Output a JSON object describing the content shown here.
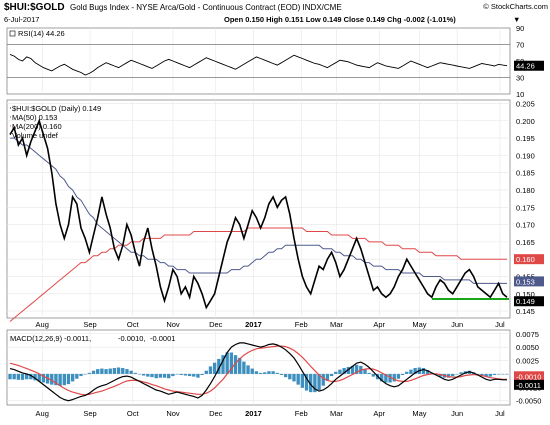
{
  "header": {
    "symbol": "$HUI:$GOLD",
    "name": "Gold Bugs Index - NYSE Arca/Gold - Continuous Contract (EOD) INDX/CME",
    "brand": "© StockCharts.com",
    "date": "6-Jul-2017",
    "quote": "Open 0.150 High 0.151 Low 0.149 Close 0.149 Chg -0.002 (-1.01%)",
    "down_arrow": "▼"
  },
  "colors": {
    "price": "#000000",
    "ma50": "#4f5a8c",
    "ma200": "#e04848",
    "rsi": "#000000",
    "macd": "#000000",
    "signal": "#e04848",
    "hist": "#3c8fbf",
    "support": "#1aa51a",
    "grid": "#e6e6e6",
    "badge_blue": "#4f5a8c",
    "badge_red": "#e04848",
    "badge_black": "#000000"
  },
  "months": [
    "Aug",
    "Sep",
    "Oct",
    "Nov",
    "Dec",
    "2017",
    "Feb",
    "Mar",
    "Apr",
    "May",
    "Jun",
    "Jul"
  ],
  "chart_data": [
    {
      "type": "line",
      "panel": "RSI",
      "legend": "RSI(14) 44.26",
      "ylim": [
        10,
        90
      ],
      "yticks": [
        "10",
        "30",
        "50",
        "70",
        "90"
      ],
      "badge": "44.26",
      "reference_lines": [
        30,
        70
      ],
      "series": [
        {
          "name": "RSI(14)",
          "values": [
            58,
            56,
            52,
            50,
            55,
            53,
            48,
            45,
            42,
            40,
            38,
            41,
            44,
            46,
            43,
            40,
            38,
            36,
            33,
            35,
            38,
            42,
            45,
            48,
            46,
            44,
            42,
            45,
            48,
            51,
            49,
            47,
            45,
            43,
            41,
            44,
            47,
            50,
            52,
            50,
            48,
            46,
            44,
            42,
            45,
            48,
            51,
            54,
            52,
            50,
            48,
            46,
            44,
            42,
            40,
            43,
            46,
            49,
            52,
            55,
            53,
            51,
            49,
            47,
            45,
            48,
            51,
            54,
            57,
            55,
            53,
            51,
            49,
            47,
            46,
            44,
            42,
            45,
            48,
            51,
            50,
            49,
            47,
            45,
            44,
            43,
            42,
            45,
            48,
            46,
            44,
            43,
            42,
            41,
            44,
            47,
            50,
            48,
            46,
            44,
            42,
            44,
            46,
            48,
            47,
            46,
            45,
            44,
            43,
            42,
            41,
            43,
            45,
            47,
            46,
            45,
            44,
            46,
            45,
            44.26
          ]
        }
      ]
    },
    {
      "type": "line",
      "panel": "Price",
      "legend_series": "$HUI:$GOLD (Daily) 0.149",
      "legend_ma50": "MA(50) 0.153",
      "legend_ma200": "MA(200) 0.160",
      "legend_volume": "Volume undef",
      "ylim": [
        0.143,
        0.206
      ],
      "yticks": [
        "0.145",
        "0.150",
        "0.155",
        "0.160",
        "0.165",
        "0.170",
        "0.175",
        "0.180",
        "0.185",
        "0.190",
        "0.195",
        "0.200",
        "0.205"
      ],
      "badges": {
        "ma200": "0.160",
        "ma50": "0.153",
        "close": "0.149"
      },
      "support_level": 0.1485,
      "series": [
        {
          "name": "$HUI:$GOLD",
          "values": [
            0.196,
            0.198,
            0.193,
            0.195,
            0.19,
            0.194,
            0.197,
            0.2,
            0.196,
            0.192,
            0.185,
            0.176,
            0.17,
            0.166,
            0.17,
            0.178,
            0.176,
            0.169,
            0.166,
            0.162,
            0.167,
            0.172,
            0.178,
            0.173,
            0.169,
            0.163,
            0.16,
            0.164,
            0.17,
            0.167,
            0.162,
            0.158,
            0.165,
            0.169,
            0.163,
            0.158,
            0.152,
            0.148,
            0.152,
            0.157,
            0.155,
            0.15,
            0.152,
            0.149,
            0.155,
            0.153,
            0.15,
            0.146,
            0.148,
            0.15,
            0.155,
            0.16,
            0.165,
            0.168,
            0.172,
            0.17,
            0.166,
            0.17,
            0.174,
            0.172,
            0.169,
            0.172,
            0.176,
            0.178,
            0.175,
            0.177,
            0.178,
            0.173,
            0.166,
            0.16,
            0.155,
            0.152,
            0.15,
            0.154,
            0.158,
            0.157,
            0.16,
            0.162,
            0.159,
            0.155,
            0.157,
            0.16,
            0.163,
            0.166,
            0.163,
            0.159,
            0.155,
            0.151,
            0.152,
            0.15,
            0.149,
            0.15,
            0.152,
            0.155,
            0.157,
            0.16,
            0.158,
            0.156,
            0.154,
            0.152,
            0.15,
            0.149,
            0.152,
            0.154,
            0.153,
            0.151,
            0.15,
            0.152,
            0.154,
            0.156,
            0.157,
            0.155,
            0.152,
            0.151,
            0.15,
            0.149,
            0.151,
            0.153,
            0.15,
            0.149
          ]
        },
        {
          "name": "MA(50)",
          "values": [
            0.195,
            0.195,
            0.194,
            0.193,
            0.193,
            0.192,
            0.191,
            0.19,
            0.189,
            0.188,
            0.187,
            0.186,
            0.184,
            0.183,
            0.181,
            0.18,
            0.178,
            0.177,
            0.175,
            0.173,
            0.172,
            0.17,
            0.169,
            0.168,
            0.167,
            0.166,
            0.165,
            0.164,
            0.163,
            0.162,
            0.162,
            0.161,
            0.161,
            0.16,
            0.16,
            0.16,
            0.159,
            0.159,
            0.158,
            0.158,
            0.157,
            0.157,
            0.157,
            0.156,
            0.156,
            0.156,
            0.156,
            0.156,
            0.156,
            0.156,
            0.156,
            0.156,
            0.156,
            0.157,
            0.157,
            0.157,
            0.158,
            0.158,
            0.159,
            0.16,
            0.16,
            0.161,
            0.162,
            0.162,
            0.163,
            0.163,
            0.164,
            0.164,
            0.164,
            0.164,
            0.164,
            0.164,
            0.164,
            0.164,
            0.164,
            0.163,
            0.163,
            0.163,
            0.162,
            0.162,
            0.161,
            0.161,
            0.161,
            0.16,
            0.16,
            0.159,
            0.159,
            0.158,
            0.158,
            0.158,
            0.157,
            0.157,
            0.157,
            0.157,
            0.156,
            0.156,
            0.156,
            0.156,
            0.156,
            0.155,
            0.155,
            0.155,
            0.155,
            0.155,
            0.154,
            0.154,
            0.154,
            0.154,
            0.154,
            0.154,
            0.154,
            0.153,
            0.153,
            0.153,
            0.153,
            0.153,
            0.153,
            0.153,
            0.153,
            0.153
          ]
        },
        {
          "name": "MA(200)",
          "values": [
            0.142,
            0.143,
            0.144,
            0.145,
            0.146,
            0.147,
            0.148,
            0.149,
            0.15,
            0.151,
            0.152,
            0.153,
            0.154,
            0.155,
            0.156,
            0.157,
            0.158,
            0.159,
            0.159,
            0.16,
            0.161,
            0.161,
            0.162,
            0.162,
            0.163,
            0.163,
            0.164,
            0.164,
            0.164,
            0.165,
            0.165,
            0.165,
            0.166,
            0.166,
            0.166,
            0.166,
            0.166,
            0.167,
            0.167,
            0.167,
            0.167,
            0.167,
            0.167,
            0.167,
            0.168,
            0.168,
            0.168,
            0.168,
            0.168,
            0.168,
            0.168,
            0.168,
            0.168,
            0.168,
            0.168,
            0.168,
            0.168,
            0.169,
            0.169,
            0.169,
            0.169,
            0.169,
            0.169,
            0.169,
            0.169,
            0.169,
            0.169,
            0.169,
            0.169,
            0.169,
            0.169,
            0.168,
            0.168,
            0.168,
            0.168,
            0.168,
            0.168,
            0.167,
            0.167,
            0.167,
            0.167,
            0.167,
            0.166,
            0.166,
            0.166,
            0.166,
            0.165,
            0.165,
            0.165,
            0.165,
            0.164,
            0.164,
            0.164,
            0.164,
            0.163,
            0.163,
            0.163,
            0.163,
            0.162,
            0.162,
            0.162,
            0.162,
            0.161,
            0.161,
            0.161,
            0.161,
            0.161,
            0.161,
            0.16,
            0.16,
            0.16,
            0.16,
            0.16,
            0.16,
            0.16,
            0.16,
            0.16,
            0.16,
            0.16,
            0.16
          ]
        }
      ]
    },
    {
      "type": "line",
      "panel": "MACD",
      "legend_macd": "MACD(12,26,9) -0.0011,",
      "legend_signal": "-0.0010,",
      "legend_hist": "-0.0001",
      "ylim": [
        -0.0058,
        0.0082
      ],
      "yticks": [
        "-0.0050",
        "-0.0025",
        "0.0000",
        "0.0025",
        "0.0050",
        "0.0075"
      ],
      "badges": {
        "signal": "-0.0010",
        "macd": "-0.0011"
      },
      "series": [
        {
          "name": "MACD",
          "values": [
            0.001,
            0.0008,
            0.0005,
            0.0002,
            0.0,
            -0.0003,
            -0.0008,
            -0.0014,
            -0.002,
            -0.0026,
            -0.0032,
            -0.0038,
            -0.0044,
            -0.0048,
            -0.005,
            -0.0048,
            -0.0045,
            -0.0042,
            -0.004,
            -0.0036,
            -0.003,
            -0.0025,
            -0.0022,
            -0.002,
            -0.0016,
            -0.0012,
            -0.0008,
            -0.0005,
            -0.0004,
            -0.0006,
            -0.001,
            -0.0014,
            -0.0018,
            -0.0022,
            -0.0026,
            -0.003,
            -0.0032,
            -0.0035,
            -0.0038,
            -0.0036,
            -0.0034,
            -0.0036,
            -0.0038,
            -0.004,
            -0.0042,
            -0.0045,
            -0.004,
            -0.003,
            -0.0018,
            -0.0005,
            0.001,
            0.0025,
            0.004,
            0.005,
            0.0055,
            0.0058,
            0.0058,
            0.0056,
            0.0054,
            0.0052,
            0.005,
            0.0052,
            0.0055,
            0.0056,
            0.0054,
            0.005,
            0.0045,
            0.0038,
            0.003,
            0.0018,
            0.0005,
            -0.0008,
            -0.002,
            -0.0028,
            -0.0032,
            -0.003,
            -0.0025,
            -0.0018,
            -0.001,
            -0.0004,
            0.0002,
            0.0008,
            0.0014,
            0.002,
            0.0022,
            0.0018,
            0.0012,
            0.0004,
            -0.0004,
            -0.0012,
            -0.0018,
            -0.0022,
            -0.0024,
            -0.0022,
            -0.0016,
            -0.001,
            -0.0004,
            0.0002,
            0.0006,
            0.0008,
            0.0006,
            0.0002,
            -0.0002,
            -0.0006,
            -0.001,
            -0.0012,
            -0.001,
            -0.0006,
            -0.0002,
            0.0002,
            0.0004,
            0.0002,
            -0.0002,
            -0.0006,
            -0.001,
            -0.0012,
            -0.001,
            -0.001,
            -0.0011,
            -0.0011
          ]
        },
        {
          "name": "Signal",
          "values": [
            0.002,
            0.0018,
            0.0016,
            0.0013,
            0.001,
            0.0007,
            0.0004,
            0.0,
            -0.0004,
            -0.0008,
            -0.0012,
            -0.0017,
            -0.0022,
            -0.0027,
            -0.0031,
            -0.0034,
            -0.0036,
            -0.0038,
            -0.0039,
            -0.0038,
            -0.0036,
            -0.0034,
            -0.0032,
            -0.0029,
            -0.0026,
            -0.0023,
            -0.002,
            -0.0016,
            -0.0013,
            -0.0012,
            -0.0012,
            -0.0013,
            -0.0015,
            -0.0017,
            -0.002,
            -0.0022,
            -0.0025,
            -0.0028,
            -0.003,
            -0.0032,
            -0.0033,
            -0.0034,
            -0.0035,
            -0.0036,
            -0.0037,
            -0.0038,
            -0.0038,
            -0.0036,
            -0.0032,
            -0.0026,
            -0.0018,
            -0.001,
            0.0,
            0.001,
            0.002,
            0.0028,
            0.0035,
            0.004,
            0.0044,
            0.0047,
            0.0048,
            0.0049,
            0.005,
            0.0051,
            0.0052,
            0.0052,
            0.0051,
            0.0048,
            0.0044,
            0.0038,
            0.0031,
            0.0023,
            0.0014,
            0.0006,
            -0.0002,
            -0.0008,
            -0.0012,
            -0.0014,
            -0.0014,
            -0.0012,
            -0.0009,
            -0.0005,
            -0.0001,
            0.0003,
            0.0007,
            0.0009,
            0.001,
            0.0009,
            0.0006,
            0.0002,
            -0.0002,
            -0.0006,
            -0.001,
            -0.0013,
            -0.0014,
            -0.0014,
            -0.0012,
            -0.0009,
            -0.0006,
            -0.0003,
            -0.0001,
            0.0,
            0.0,
            -0.0001,
            -0.0003,
            -0.0005,
            -0.0006,
            -0.0006,
            -0.0005,
            -0.0003,
            -0.0002,
            -0.0001,
            -0.0002,
            -0.0003,
            -0.0005,
            -0.0007,
            -0.0008,
            -0.0009,
            -0.001,
            -0.001
          ]
        }
      ]
    }
  ]
}
